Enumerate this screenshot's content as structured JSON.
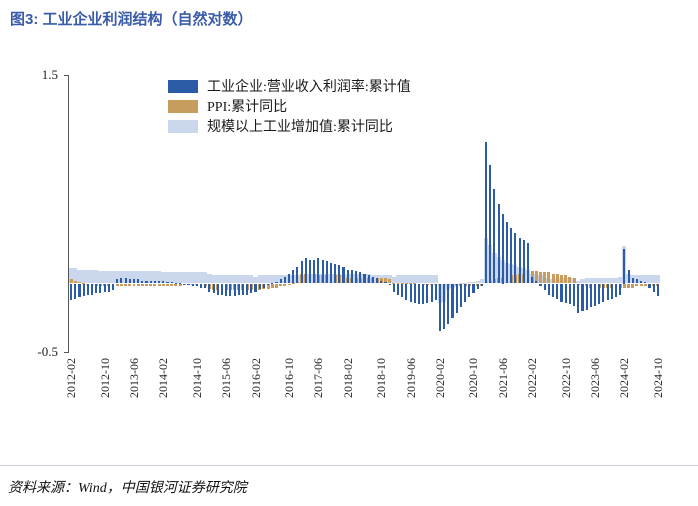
{
  "title": "图3:  工业企业利润结构（自然对数）",
  "source": "资料来源：Wind，中国银河证券研究院",
  "chart_data": {
    "type": "bar",
    "title": "图3:  工业企业利润结构（自然对数）",
    "xlabel": "",
    "ylabel": "",
    "ylim": [
      -0.5,
      1.5
    ],
    "y_tick_labels": [
      "1.5",
      "-0.5"
    ],
    "grid": false,
    "legend_position": "top-left",
    "x_tick_labels": [
      "2012-02",
      "2012-10",
      "2013-06",
      "2014-02",
      "2014-10",
      "2015-06",
      "2016-02",
      "2016-10",
      "2017-06",
      "2018-02",
      "2018-10",
      "2019-06",
      "2020-02",
      "2020-10",
      "2021-06",
      "2022-02",
      "2022-10",
      "2023-06",
      "2024-02",
      "2024-10"
    ],
    "x": [
      "2012-02",
      "2012-03",
      "2012-04",
      "2012-05",
      "2012-06",
      "2012-07",
      "2012-08",
      "2012-09",
      "2012-10",
      "2012-11",
      "2012-12",
      "2013-02",
      "2013-03",
      "2013-04",
      "2013-05",
      "2013-06",
      "2013-07",
      "2013-08",
      "2013-09",
      "2013-10",
      "2013-11",
      "2013-12",
      "2014-02",
      "2014-03",
      "2014-04",
      "2014-05",
      "2014-06",
      "2014-07",
      "2014-08",
      "2014-09",
      "2014-10",
      "2014-11",
      "2014-12",
      "2015-02",
      "2015-03",
      "2015-04",
      "2015-05",
      "2015-06",
      "2015-07",
      "2015-08",
      "2015-09",
      "2015-10",
      "2015-11",
      "2015-12",
      "2016-02",
      "2016-03",
      "2016-04",
      "2016-05",
      "2016-06",
      "2016-07",
      "2016-08",
      "2016-09",
      "2016-10",
      "2016-11",
      "2016-12",
      "2017-02",
      "2017-03",
      "2017-04",
      "2017-05",
      "2017-06",
      "2017-07",
      "2017-08",
      "2017-09",
      "2017-10",
      "2017-11",
      "2017-12",
      "2018-02",
      "2018-03",
      "2018-04",
      "2018-05",
      "2018-06",
      "2018-07",
      "2018-08",
      "2018-09",
      "2018-10",
      "2018-11",
      "2018-12",
      "2019-02",
      "2019-03",
      "2019-04",
      "2019-05",
      "2019-06",
      "2019-07",
      "2019-08",
      "2019-09",
      "2019-10",
      "2019-11",
      "2019-12",
      "2020-02",
      "2020-03",
      "2020-04",
      "2020-05",
      "2020-06",
      "2020-07",
      "2020-08",
      "2020-09",
      "2020-10",
      "2020-11",
      "2020-12",
      "2021-02",
      "2021-03",
      "2021-04",
      "2021-05",
      "2021-06",
      "2021-07",
      "2021-08",
      "2021-09",
      "2021-10",
      "2021-11",
      "2021-12",
      "2022-02",
      "2022-03",
      "2022-04",
      "2022-05",
      "2022-06",
      "2022-07",
      "2022-08",
      "2022-09",
      "2022-10",
      "2022-11",
      "2022-12",
      "2023-02",
      "2023-03",
      "2023-04",
      "2023-05",
      "2023-06",
      "2023-07",
      "2023-08",
      "2023-09",
      "2023-10",
      "2023-11",
      "2023-12",
      "2024-02",
      "2024-03",
      "2024-04",
      "2024-05",
      "2024-06",
      "2024-07",
      "2024-08",
      "2024-09",
      "2024-10"
    ],
    "series": [
      {
        "name": "工业企业:营业收入利润率:累计值",
        "color": "#2c5ba7",
        "values": [
          -0.12,
          -0.11,
          -0.1,
          -0.09,
          -0.08,
          -0.08,
          -0.07,
          -0.07,
          -0.06,
          -0.06,
          -0.05,
          0.03,
          0.04,
          0.04,
          0.03,
          0.03,
          0.03,
          0.02,
          0.02,
          0.02,
          0.02,
          0.02,
          0.02,
          0.01,
          0.01,
          0.0,
          0.0,
          -0.01,
          -0.01,
          -0.02,
          -0.02,
          -0.03,
          -0.03,
          -0.06,
          -0.07,
          -0.08,
          -0.08,
          -0.09,
          -0.09,
          -0.09,
          -0.08,
          -0.08,
          -0.08,
          -0.07,
          -0.06,
          -0.04,
          -0.03,
          -0.01,
          0.0,
          0.01,
          0.03,
          0.05,
          0.07,
          0.1,
          0.12,
          0.16,
          0.18,
          0.17,
          0.17,
          0.18,
          0.17,
          0.16,
          0.15,
          0.14,
          0.13,
          0.12,
          0.1,
          0.1,
          0.09,
          0.08,
          0.07,
          0.06,
          0.05,
          0.04,
          0.02,
          0.01,
          -0.01,
          -0.06,
          -0.08,
          -0.1,
          -0.12,
          -0.13,
          -0.14,
          -0.15,
          -0.15,
          -0.14,
          -0.13,
          -0.12,
          -0.34,
          -0.33,
          -0.29,
          -0.25,
          -0.21,
          -0.17,
          -0.13,
          -0.1,
          -0.07,
          -0.04,
          -0.02,
          1.02,
          0.85,
          0.68,
          0.57,
          0.5,
          0.44,
          0.4,
          0.36,
          0.33,
          0.31,
          0.29,
          0.05,
          0.02,
          -0.02,
          -0.05,
          -0.08,
          -0.1,
          -0.11,
          -0.13,
          -0.14,
          -0.15,
          -0.16,
          -0.21,
          -0.2,
          -0.19,
          -0.17,
          -0.16,
          -0.15,
          -0.13,
          -0.12,
          -0.11,
          -0.1,
          -0.08,
          0.25,
          0.1,
          0.04,
          0.03,
          0.02,
          0.01,
          -0.03,
          -0.06,
          -0.09
        ]
      },
      {
        "name": "PPI:累计同比",
        "color": "#c69c5f",
        "values": [
          0.03,
          0.02,
          0.01,
          0.0,
          -0.01,
          -0.01,
          -0.02,
          -0.02,
          -0.02,
          -0.02,
          -0.02,
          -0.02,
          -0.02,
          -0.02,
          -0.02,
          -0.02,
          -0.02,
          -0.02,
          -0.02,
          -0.02,
          -0.02,
          -0.02,
          -0.02,
          -0.02,
          -0.02,
          -0.02,
          -0.02,
          -0.01,
          -0.01,
          -0.01,
          -0.01,
          -0.02,
          -0.02,
          -0.04,
          -0.05,
          -0.05,
          -0.05,
          -0.05,
          -0.05,
          -0.05,
          -0.05,
          -0.05,
          -0.05,
          -0.05,
          -0.05,
          -0.05,
          -0.04,
          -0.04,
          -0.03,
          -0.03,
          -0.02,
          -0.02,
          -0.01,
          0.0,
          0.01,
          0.07,
          0.07,
          0.07,
          0.07,
          0.06,
          0.06,
          0.06,
          0.06,
          0.06,
          0.06,
          0.06,
          0.04,
          0.04,
          0.04,
          0.04,
          0.04,
          0.04,
          0.04,
          0.04,
          0.04,
          0.04,
          0.03,
          0.0,
          0.0,
          0.0,
          0.0,
          0.0,
          0.0,
          -0.01,
          -0.01,
          -0.01,
          -0.01,
          -0.01,
          -0.01,
          -0.01,
          -0.01,
          -0.02,
          -0.02,
          -0.02,
          -0.02,
          -0.02,
          -0.02,
          -0.02,
          -0.02,
          0.01,
          0.02,
          0.03,
          0.04,
          0.04,
          0.05,
          0.06,
          0.06,
          0.07,
          0.07,
          0.08,
          0.09,
          0.09,
          0.08,
          0.08,
          0.08,
          0.07,
          0.07,
          0.06,
          0.06,
          0.05,
          0.04,
          -0.01,
          -0.02,
          -0.02,
          -0.03,
          -0.03,
          -0.03,
          -0.03,
          -0.03,
          -0.03,
          -0.03,
          -0.03,
          -0.03,
          -0.03,
          -0.03,
          -0.02,
          -0.02,
          -0.02,
          -0.02,
          -0.02,
          -0.02
        ]
      },
      {
        "name": "规模以上工业增加值:累计同比",
        "color": "#cbd7ec",
        "values": [
          0.11,
          0.11,
          0.1,
          0.1,
          0.1,
          0.1,
          0.1,
          0.09,
          0.09,
          0.09,
          0.09,
          0.09,
          0.09,
          0.09,
          0.09,
          0.09,
          0.09,
          0.09,
          0.09,
          0.09,
          0.09,
          0.09,
          0.08,
          0.08,
          0.08,
          0.08,
          0.08,
          0.08,
          0.08,
          0.08,
          0.08,
          0.08,
          0.08,
          0.07,
          0.06,
          0.06,
          0.06,
          0.06,
          0.06,
          0.06,
          0.06,
          0.06,
          0.06,
          0.06,
          0.05,
          0.06,
          0.06,
          0.06,
          0.06,
          0.06,
          0.06,
          0.06,
          0.06,
          0.06,
          0.06,
          0.06,
          0.07,
          0.07,
          0.07,
          0.07,
          0.07,
          0.07,
          0.07,
          0.07,
          0.07,
          0.06,
          0.07,
          0.07,
          0.07,
          0.07,
          0.07,
          0.07,
          0.06,
          0.06,
          0.06,
          0.06,
          0.06,
          0.05,
          0.06,
          0.06,
          0.06,
          0.06,
          0.06,
          0.06,
          0.06,
          0.06,
          0.06,
          0.06,
          -0.14,
          -0.13,
          -0.05,
          -0.03,
          -0.01,
          0.0,
          0.0,
          0.01,
          0.01,
          0.02,
          0.03,
          0.33,
          0.28,
          0.22,
          0.19,
          0.17,
          0.15,
          0.14,
          0.13,
          0.12,
          0.11,
          0.1,
          0.07,
          0.07,
          0.06,
          0.04,
          0.03,
          0.03,
          0.04,
          0.04,
          0.04,
          0.04,
          0.04,
          0.02,
          0.03,
          0.04,
          0.04,
          0.04,
          0.04,
          0.04,
          0.04,
          0.04,
          0.04,
          0.05,
          0.27,
          0.07,
          0.06,
          0.06,
          0.06,
          0.06,
          0.06,
          0.06,
          0.06
        ]
      }
    ]
  }
}
